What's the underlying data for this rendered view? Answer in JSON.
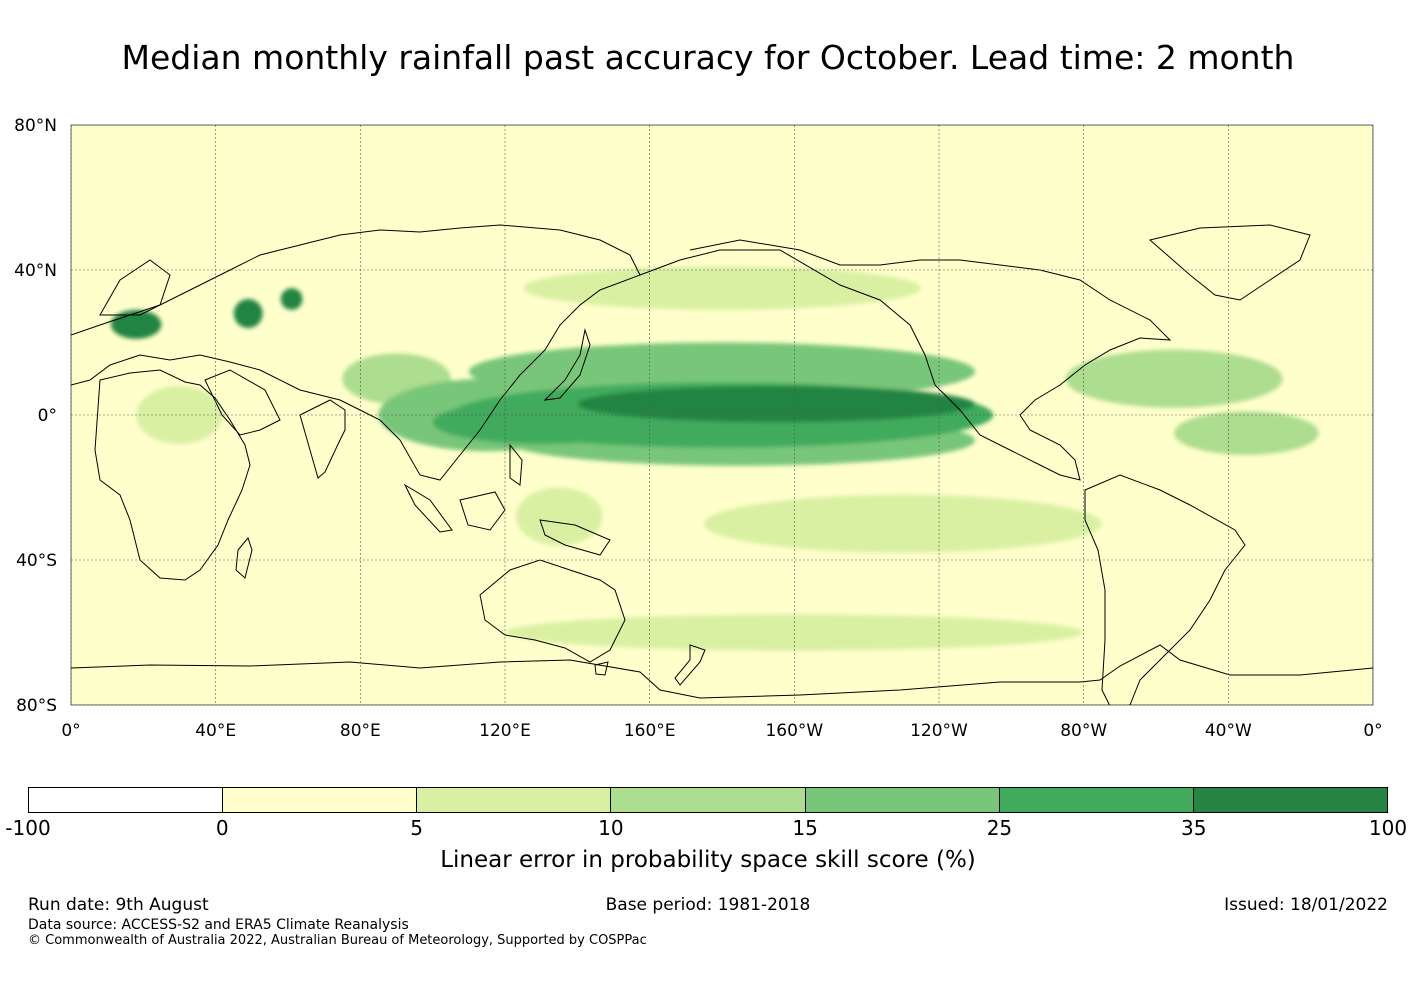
{
  "title": "Median monthly rainfall past accuracy for October. Lead time: 2 month",
  "map": {
    "projection": "equirectangular",
    "lon_range_east_deg": [
      0,
      360
    ],
    "lat_range_deg": [
      -80,
      80
    ],
    "gridlines": true,
    "lat_ticks": [
      {
        "value": 80,
        "label": "80°N"
      },
      {
        "value": 40,
        "label": "40°N"
      },
      {
        "value": 0,
        "label": "0°"
      },
      {
        "value": -40,
        "label": "40°S"
      },
      {
        "value": -80,
        "label": "80°S"
      }
    ],
    "lon_ticks": [
      {
        "value": 0,
        "label": "0°"
      },
      {
        "value": 40,
        "label": "40°E"
      },
      {
        "value": 80,
        "label": "80°E"
      },
      {
        "value": 120,
        "label": "120°E"
      },
      {
        "value": 160,
        "label": "160°E"
      },
      {
        "value": 200,
        "label": "160°W"
      },
      {
        "value": 240,
        "label": "120°W"
      },
      {
        "value": 280,
        "label": "80°W"
      },
      {
        "value": 320,
        "label": "40°W"
      },
      {
        "value": 360,
        "label": "0°"
      }
    ],
    "regions": [
      {
        "lon": 180,
        "lat": 0,
        "rx": 75,
        "ry": 9,
        "level": 1
      },
      {
        "lon": 180,
        "lat": 12,
        "rx": 70,
        "ry": 8,
        "level": 2
      },
      {
        "lon": 185,
        "lat": -7,
        "rx": 65,
        "ry": 7,
        "level": 2
      },
      {
        "lon": 195,
        "lat": 3,
        "rx": 55,
        "ry": 5,
        "level": 0
      },
      {
        "lon": 130,
        "lat": -2,
        "rx": 30,
        "ry": 6,
        "level": 1
      },
      {
        "lon": 115,
        "lat": 0,
        "rx": 30,
        "ry": 10,
        "level": 2
      },
      {
        "lon": 90,
        "lat": 10,
        "rx": 15,
        "ry": 7,
        "level": 3
      },
      {
        "lon": 305,
        "lat": 10,
        "rx": 30,
        "ry": 8,
        "level": 3
      },
      {
        "lon": 325,
        "lat": -5,
        "rx": 20,
        "ry": 6,
        "level": 3
      },
      {
        "lon": 30,
        "lat": 0,
        "rx": 12,
        "ry": 8,
        "level": 4
      },
      {
        "lon": 135,
        "lat": -28,
        "rx": 12,
        "ry": 8,
        "level": 4
      },
      {
        "lon": 180,
        "lat": 35,
        "rx": 55,
        "ry": 6,
        "level": 4
      },
      {
        "lon": 230,
        "lat": -30,
        "rx": 55,
        "ry": 8,
        "level": 4
      },
      {
        "lon": 200,
        "lat": -60,
        "rx": 80,
        "ry": 5,
        "level": 4
      },
      {
        "lon": 18,
        "lat": 25,
        "rx": 7,
        "ry": 4,
        "level": 0
      },
      {
        "lon": 49,
        "lat": 28,
        "rx": 4,
        "ry": 4,
        "level": 0
      },
      {
        "lon": 61,
        "lat": 32,
        "rx": 3,
        "ry": 3,
        "level": 0
      }
    ]
  },
  "colorbar": {
    "colors": [
      "#ffffff",
      "#ffffcc",
      "#d9f0a3",
      "#addd8e",
      "#78c679",
      "#41ab5d",
      "#238443"
    ],
    "ticks": [
      "-100",
      "0",
      "5",
      "10",
      "15",
      "25",
      "35",
      "100"
    ],
    "label": "Linear error in probability space skill score (%)"
  },
  "footer": {
    "run_date": "Run date: 9th August",
    "base_period": "Base period: 1981-2018",
    "issued": "Issued: 18/01/2022",
    "data_source": "Data source: ACCESS-S2 and ERA5 Climate Reanalysis",
    "copyright": "© Commonwealth of Australia 2022, Australian Bureau of Meteorology, Supported by COSPPac"
  }
}
